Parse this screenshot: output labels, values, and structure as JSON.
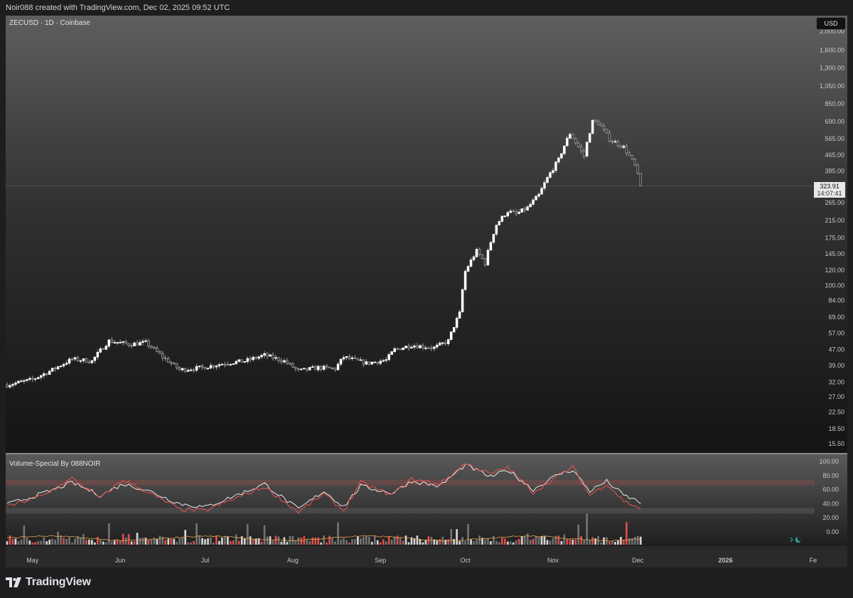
{
  "header": {
    "caption": "Noir088 created with TradingView.com, Dec 02, 2025 09:52 UTC"
  },
  "chart": {
    "symbol_title": "ZECUSD · 1D · Coinbase",
    "currency_badge": "USD",
    "last_price_label": "323.91",
    "countdown_label": "14:07:41",
    "indicator_title": "Volume-Special By 088NOIR",
    "logo_text": "TradingView"
  },
  "colors": {
    "up_candle": "#ffffff",
    "down_candle": "#9e9e9e",
    "volume_red": "#ef5350",
    "volume_white": "#e8e8e8",
    "volume_grey": "#7b7b7b",
    "osc_white": "#e8e8e8",
    "osc_red": "#ef5350",
    "osc_ma": "#e8a04c"
  },
  "chart_data": [
    {
      "type": "candlestick",
      "title": "ZECUSD · 1D · Coinbase",
      "y_scale": "log",
      "y_ticks": [
        2000,
        1600,
        1300,
        1050,
        850,
        690,
        565,
        465,
        385,
        265,
        215,
        175,
        145,
        120,
        100,
        84,
        69,
        57,
        47,
        39,
        32,
        27,
        22.5,
        18.5,
        15.5
      ],
      "y_tick_labels": [
        "2,000.00",
        "1,600.00",
        "1,300.00",
        "1,050.00",
        "850.00",
        "690.00",
        "565.00",
        "465.00",
        "385.00",
        "265.00",
        "215.00",
        "175.00",
        "145.00",
        "120.00",
        "100.00",
        "84.00",
        "69.00",
        "57.00",
        "47.00",
        "39.00",
        "32.00",
        "27.00",
        "22.50",
        "18.50",
        "15.50"
      ],
      "x_labels": [
        {
          "label": "May",
          "date": "2025-05-01"
        },
        {
          "label": "Jun",
          "date": "2025-06-01"
        },
        {
          "label": "Jul",
          "date": "2025-07-01"
        },
        {
          "label": "Aug",
          "date": "2025-08-01"
        },
        {
          "label": "Sep",
          "date": "2025-09-01"
        },
        {
          "label": "Oct",
          "date": "2025-10-01"
        },
        {
          "label": "Nov",
          "date": "2025-11-01"
        },
        {
          "label": "Dec",
          "date": "2025-12-01"
        },
        {
          "label": "2026",
          "date": "2026-01-01"
        },
        {
          "label": "Fe",
          "date": "2026-02-01"
        }
      ],
      "x_start_date": "2025-04-22",
      "x_end_date": "2026-02-01",
      "last_price": 323.91,
      "close_anchors": [
        [
          "2025-04-22",
          31
        ],
        [
          "2025-05-01",
          33
        ],
        [
          "2025-05-08",
          37
        ],
        [
          "2025-05-15",
          42
        ],
        [
          "2025-05-22",
          41
        ],
        [
          "2025-05-28",
          52
        ],
        [
          "2025-06-04",
          50
        ],
        [
          "2025-06-10",
          51
        ],
        [
          "2025-06-16",
          43
        ],
        [
          "2025-06-22",
          37
        ],
        [
          "2025-06-30",
          38
        ],
        [
          "2025-07-08",
          40
        ],
        [
          "2025-07-15",
          41
        ],
        [
          "2025-07-22",
          44
        ],
        [
          "2025-07-29",
          41
        ],
        [
          "2025-08-03",
          36.5
        ],
        [
          "2025-08-10",
          38
        ],
        [
          "2025-08-16",
          37.5
        ],
        [
          "2025-08-19",
          43
        ],
        [
          "2025-08-27",
          40
        ],
        [
          "2025-09-03",
          41.5
        ],
        [
          "2025-09-06",
          47
        ],
        [
          "2025-09-12",
          49.5
        ],
        [
          "2025-09-20",
          48
        ],
        [
          "2025-09-25",
          52
        ],
        [
          "2025-09-29",
          72
        ],
        [
          "2025-10-01",
          118
        ],
        [
          "2025-10-05",
          150
        ],
        [
          "2025-10-08",
          130
        ],
        [
          "2025-10-12",
          205
        ],
        [
          "2025-10-16",
          240
        ],
        [
          "2025-10-19",
          232
        ],
        [
          "2025-10-23",
          250
        ],
        [
          "2025-10-27",
          290
        ],
        [
          "2025-11-03",
          440
        ],
        [
          "2025-11-07",
          600
        ],
        [
          "2025-11-09",
          540
        ],
        [
          "2025-11-12",
          460
        ],
        [
          "2025-11-15",
          690
        ],
        [
          "2025-11-17",
          680
        ],
        [
          "2025-11-21",
          560
        ],
        [
          "2025-11-26",
          510
        ],
        [
          "2025-11-30",
          410
        ],
        [
          "2025-12-02",
          323.91
        ]
      ]
    },
    {
      "type": "line",
      "title": "Volume-Special By 088NOIR",
      "y_ticks": [
        100,
        80,
        60,
        40,
        20,
        0
      ],
      "y_tick_labels": [
        "100.00",
        "80.00",
        "60.00",
        "40.00",
        "20.00",
        "0.00"
      ],
      "bands": [
        {
          "from": 66,
          "to": 74,
          "color": "#ef5350"
        },
        {
          "from": 26,
          "to": 34,
          "color": "#9e9e9e"
        }
      ],
      "series": [
        {
          "color": "#e8e8e8",
          "anchors": [
            [
              "2025-04-22",
              39
            ],
            [
              "2025-05-05",
              55
            ],
            [
              "2025-05-15",
              70
            ],
            [
              "2025-05-25",
              52
            ],
            [
              "2025-06-02",
              68
            ],
            [
              "2025-06-10",
              60
            ],
            [
              "2025-06-22",
              40
            ],
            [
              "2025-07-01",
              35
            ],
            [
              "2025-07-12",
              52
            ],
            [
              "2025-07-22",
              68
            ],
            [
              "2025-08-03",
              32
            ],
            [
              "2025-08-12",
              58
            ],
            [
              "2025-08-19",
              36
            ],
            [
              "2025-08-25",
              65
            ],
            [
              "2025-09-05",
              55
            ],
            [
              "2025-09-12",
              72
            ],
            [
              "2025-09-22",
              65
            ],
            [
              "2025-10-01",
              95
            ],
            [
              "2025-10-10",
              78
            ],
            [
              "2025-10-16",
              88
            ],
            [
              "2025-10-25",
              60
            ],
            [
              "2025-11-03",
              82
            ],
            [
              "2025-11-08",
              88
            ],
            [
              "2025-11-14",
              58
            ],
            [
              "2025-11-20",
              72
            ],
            [
              "2025-11-26",
              52
            ],
            [
              "2025-12-02",
              42
            ]
          ]
        },
        {
          "color": "#ef5350",
          "anchors": [
            [
              "2025-04-22",
              36
            ],
            [
              "2025-05-05",
              52
            ],
            [
              "2025-05-15",
              76
            ],
            [
              "2025-05-25",
              48
            ],
            [
              "2025-06-02",
              74
            ],
            [
              "2025-06-10",
              58
            ],
            [
              "2025-06-22",
              32
            ],
            [
              "2025-07-01",
              30
            ],
            [
              "2025-07-12",
              48
            ],
            [
              "2025-07-22",
              64
            ],
            [
              "2025-08-03",
              28
            ],
            [
              "2025-08-12",
              54
            ],
            [
              "2025-08-19",
              30
            ],
            [
              "2025-08-25",
              70
            ],
            [
              "2025-09-05",
              52
            ],
            [
              "2025-09-12",
              75
            ],
            [
              "2025-09-22",
              68
            ],
            [
              "2025-10-01",
              97
            ],
            [
              "2025-10-10",
              82
            ],
            [
              "2025-10-16",
              92
            ],
            [
              "2025-10-25",
              56
            ],
            [
              "2025-11-03",
              80
            ],
            [
              "2025-11-08",
              92
            ],
            [
              "2025-11-14",
              52
            ],
            [
              "2025-11-20",
              68
            ],
            [
              "2025-11-26",
              44
            ],
            [
              "2025-12-02",
              33
            ]
          ]
        }
      ]
    }
  ]
}
